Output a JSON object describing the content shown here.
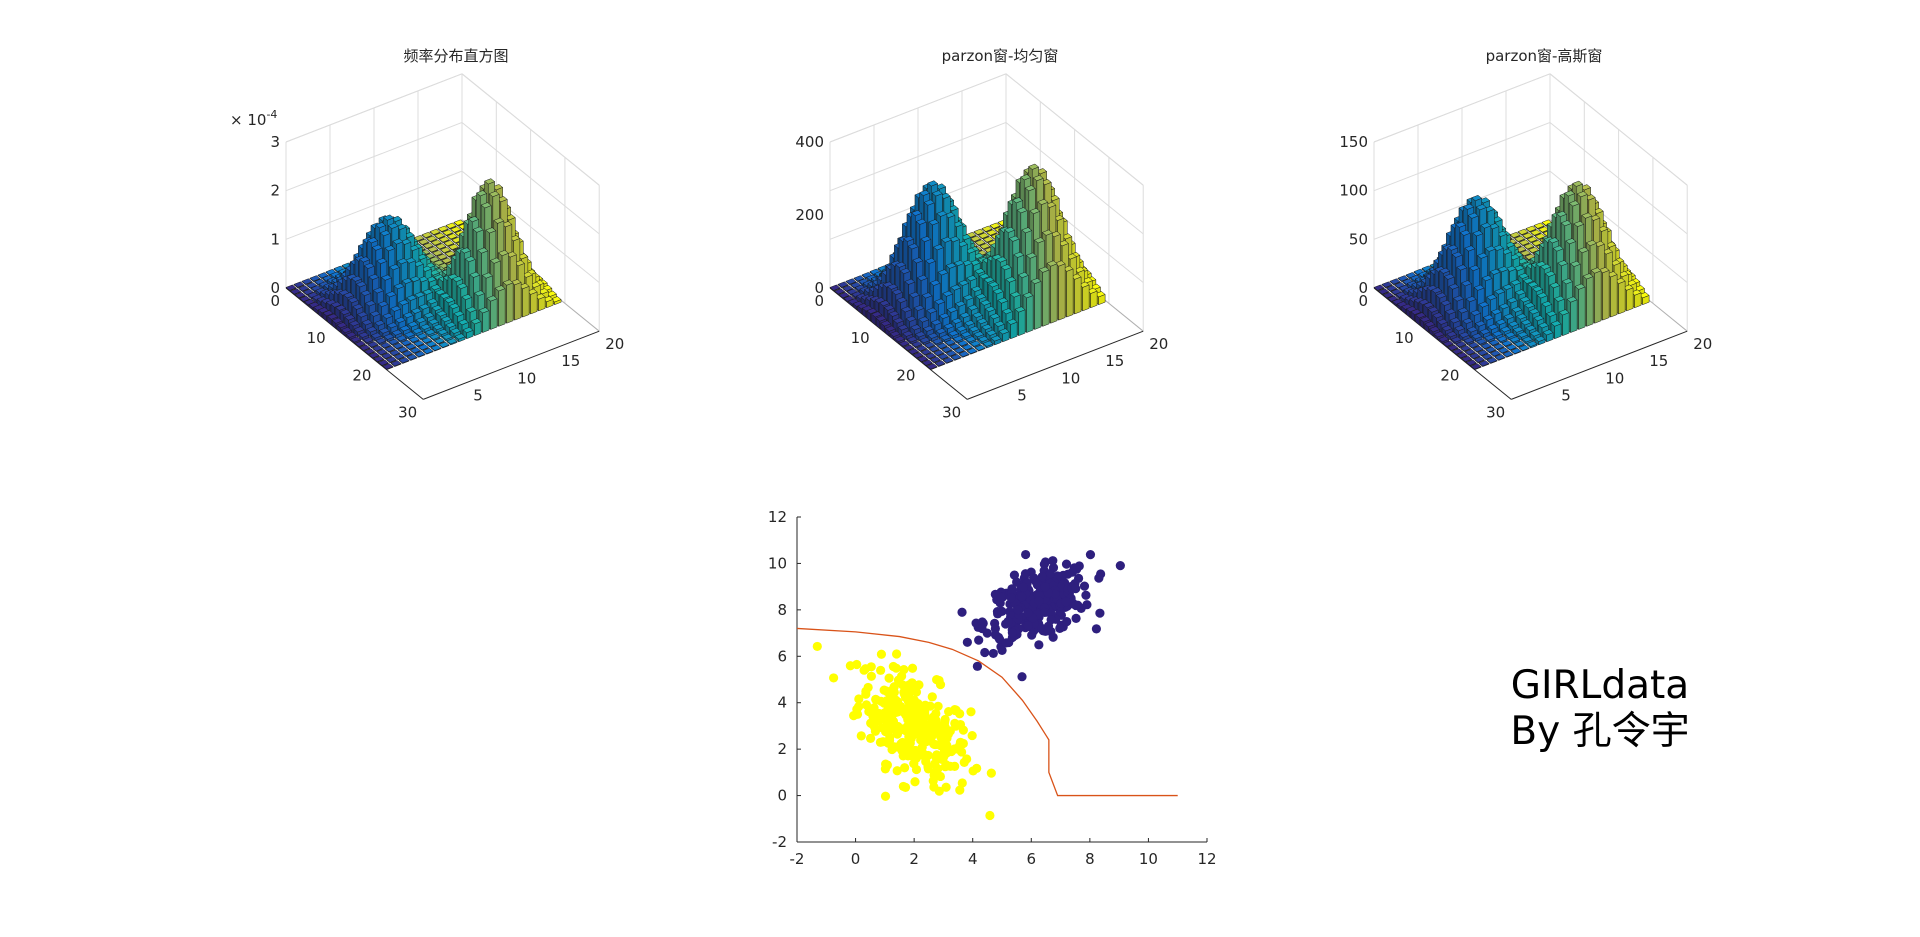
{
  "chart_data": [
    {
      "type": "bar3d",
      "title": "频率分布直方图",
      "exponent_label": "× 10",
      "exponent_power": "-4",
      "z_ticks": [
        "0",
        "1",
        "2",
        "3"
      ],
      "z_lim": [
        0,
        3
      ],
      "row_axis_ticks": [
        "0",
        "10",
        "20",
        "30"
      ],
      "col_axis_ticks": [
        "5",
        "10",
        "15",
        "20"
      ],
      "peaks": [
        {
          "row": 9,
          "col": 7,
          "height": 1.7,
          "spread": 3.0
        },
        {
          "row": 17,
          "col": 15,
          "height": 2.55,
          "spread": 2.6
        }
      ]
    },
    {
      "type": "bar3d",
      "title": "parzon窗-均匀窗",
      "z_ticks": [
        "0",
        "200",
        "400"
      ],
      "z_lim": [
        0,
        400
      ],
      "row_axis_ticks": [
        "0",
        "10",
        "20",
        "30"
      ],
      "col_axis_ticks": [
        "5",
        "10",
        "15",
        "20"
      ],
      "peaks": [
        {
          "row": 9,
          "col": 7,
          "height": 320,
          "spread": 3.0
        },
        {
          "row": 17,
          "col": 15,
          "height": 380,
          "spread": 3.0
        }
      ]
    },
    {
      "type": "bar3d",
      "title": "parzon窗-高斯窗",
      "z_ticks": [
        "0",
        "50",
        "100",
        "150"
      ],
      "z_lim": [
        0,
        150
      ],
      "row_axis_ticks": [
        "0",
        "10",
        "20",
        "30"
      ],
      "col_axis_ticks": [
        "5",
        "10",
        "15",
        "20"
      ],
      "peaks": [
        {
          "row": 9,
          "col": 7,
          "height": 105,
          "spread": 3.0
        },
        {
          "row": 17,
          "col": 15,
          "height": 125,
          "spread": 3.0
        }
      ]
    },
    {
      "type": "scatter",
      "xlim": [
        -2,
        12
      ],
      "ylim": [
        -2,
        12
      ],
      "x_ticks": [
        "-2",
        "0",
        "2",
        "4",
        "6",
        "8",
        "10",
        "12"
      ],
      "y_ticks": [
        "-2",
        "0",
        "2",
        "4",
        "6",
        "8",
        "10",
        "12"
      ],
      "series": [
        {
          "color": "#ffff00",
          "center": [
            2.0,
            3.0
          ],
          "sd": [
            0.95,
            1.25
          ],
          "corr": -0.5,
          "count": 300
        },
        {
          "color": "#2e1f7e",
          "center": [
            6.2,
            8.2
          ],
          "sd": [
            0.9,
            0.8
          ],
          "corr": 0.45,
          "count": 300
        }
      ],
      "boundary": {
        "color": "#d95319",
        "points": [
          [
            -2,
            7.2
          ],
          [
            0,
            7.05
          ],
          [
            1.5,
            6.85
          ],
          [
            2.5,
            6.6
          ],
          [
            3.3,
            6.3
          ],
          [
            4.2,
            5.8
          ],
          [
            5.0,
            5.1
          ],
          [
            5.7,
            4.1
          ],
          [
            6.2,
            3.2
          ],
          [
            6.5,
            2.6
          ],
          [
            6.6,
            2.4
          ],
          [
            6.6,
            1.0
          ],
          [
            6.9,
            0.0
          ],
          [
            11,
            0.0
          ]
        ]
      }
    }
  ],
  "caption": {
    "line1": "GIRLdata",
    "line2": "By 孔令宇"
  }
}
